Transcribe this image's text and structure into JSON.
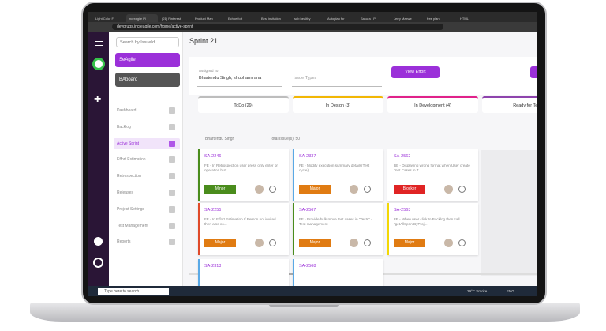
{
  "browser": {
    "tabs": [
      "Light Color F",
      "increagile Pl",
      "(21) Pinterest",
      "Product Man",
      "Echoeffort",
      "Best invitation",
      "sub healthy",
      "Autoplan for",
      "Sakura - Pl",
      "Jerry Maxwe",
      "free plan",
      "HTML"
    ],
    "url": "devdrugs.increagile.com/home/active-sprint"
  },
  "sidebar": {
    "search_placeholder": "Search by IssueId...",
    "project": "SeAgile",
    "board": "BAboard",
    "menu": [
      "Dashboard",
      "Backlog",
      "Active Sprint",
      "Effort Estimation",
      "Retrospection",
      "Releases",
      "Project Settings",
      "Test Management",
      "Reports"
    ],
    "active_index": 2
  },
  "header": {
    "title": "Sprint 21"
  },
  "filters": {
    "assigned_label": "Assigned To",
    "assigned_value": "Bhartendu Singh, shubham rana",
    "issue_types": "Issue Types",
    "button": "View Effort"
  },
  "columns": [
    {
      "label": "ToDo (29)",
      "color": "#bdbdbd"
    },
    {
      "label": "In Design (3)",
      "color": "#f2b705"
    },
    {
      "label": "In Development (4)",
      "color": "#e0218a"
    },
    {
      "label": "Ready for Testi",
      "color": "#8e44ad"
    }
  ],
  "group": {
    "name": "Bhartendu Singh",
    "total": "Total Issue(s): 50"
  },
  "cards": [
    {
      "id": "SA-2246",
      "summary": "FE - In Retrospection user press only enter or operation butt...",
      "priority": "Minor",
      "priority_color": "#4a8c1c",
      "border": "#4a8c1c",
      "column": 0,
      "row": 0
    },
    {
      "id": "SA-2337",
      "summary": "FE - Modify execution summary details(Test cycle)",
      "priority": "Major",
      "priority_color": "#e07b12",
      "border": "#5aa9e6",
      "column": 1,
      "row": 0
    },
    {
      "id": "SA-2562",
      "summary": "BE - Displaying wrong format when User create Test Cases in T...",
      "priority": "Blocker",
      "priority_color": "#e02424",
      "border": "#ffffff",
      "column": 2,
      "row": 0
    },
    {
      "id": "SA-2255",
      "summary": "FE - In Effort Estimation If Person not invited then also co...",
      "priority": "Major",
      "priority_color": "#e07b12",
      "border": "#e04a2a",
      "column": 0,
      "row": 1
    },
    {
      "id": "SA-2567",
      "summary": "FE - Provide bulk move test cases in \"Tests\" - Test management",
      "priority": "Major",
      "priority_color": "#e07b12",
      "border": "#4a8c1c",
      "column": 1,
      "row": 1
    },
    {
      "id": "SA-2563",
      "summary": "FE - When user click to Backlog then call \"getAllSprintByProj...",
      "priority": "Major",
      "priority_color": "#e07b12",
      "border": "#f2d705",
      "column": 2,
      "row": 1
    },
    {
      "id": "SA-2313",
      "column": 0,
      "row": 2
    },
    {
      "id": "SA-2568",
      "column": 1,
      "row": 2
    }
  ],
  "taskbar": {
    "search": "Type here to search",
    "weather": "29°C Smoke",
    "lang": "ENG"
  }
}
